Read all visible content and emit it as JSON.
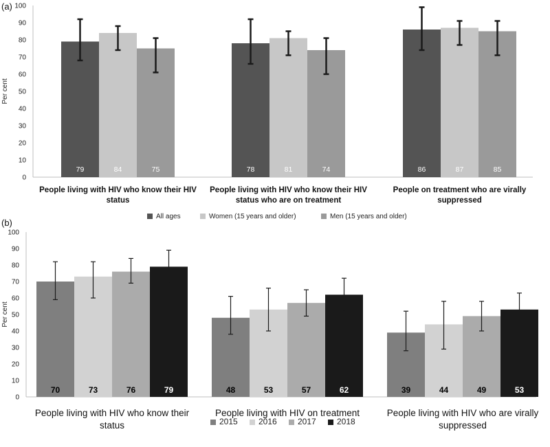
{
  "chart_data": [
    {
      "type": "bar",
      "panel_label": "(a)",
      "ylabel": "Per cent",
      "ylim": [
        0,
        100
      ],
      "yticks": [
        0,
        10,
        20,
        30,
        40,
        50,
        60,
        70,
        80,
        90,
        100
      ],
      "grid": false,
      "legend_position": "bottom",
      "categories": [
        [
          "People living with HIV who know their HIV",
          "status"
        ],
        [
          "People living with HIV who know their HIV",
          "status who are on treatment"
        ],
        [
          "People on treatment who are virally",
          "suppressed"
        ]
      ],
      "series": [
        {
          "name": "All ages",
          "color": "#545454",
          "label_color": "#ffffff",
          "values": [
            79,
            78,
            86
          ],
          "err_low": [
            68,
            66,
            74
          ],
          "err_high": [
            92,
            92,
            99
          ]
        },
        {
          "name": "Women (15 years and older)",
          "color": "#c7c7c7",
          "label_color": "#ffffff",
          "values": [
            84,
            81,
            87
          ],
          "err_low": [
            74,
            71,
            77
          ],
          "err_high": [
            88,
            85,
            91
          ]
        },
        {
          "name": "Men (15 years and older)",
          "color": "#9a9a9a",
          "label_color": "#ffffff",
          "values": [
            75,
            74,
            85
          ],
          "err_low": [
            61,
            60,
            71
          ],
          "err_high": [
            81,
            81,
            91
          ]
        }
      ]
    },
    {
      "type": "bar",
      "panel_label": "(b)",
      "ylabel": "Per cent",
      "ylim": [
        0,
        100
      ],
      "yticks": [
        0,
        10,
        20,
        30,
        40,
        50,
        60,
        70,
        80,
        90,
        100
      ],
      "grid": false,
      "legend_position": "bottom",
      "categories": [
        [
          "People living with HIV who know their",
          "status"
        ],
        [
          "People living with HIV on treatment"
        ],
        [
          "People living with HIV who are virally",
          "suppressed"
        ]
      ],
      "series": [
        {
          "name": "2015",
          "color": "#7f7f7f",
          "label_color": "#000000",
          "values": [
            70,
            48,
            39
          ],
          "err_low": [
            59,
            38,
            28
          ],
          "err_high": [
            82,
            61,
            52
          ]
        },
        {
          "name": "2016",
          "color": "#d2d2d2",
          "label_color": "#000000",
          "values": [
            73,
            53,
            44
          ],
          "err_low": [
            60,
            40,
            29
          ],
          "err_high": [
            82,
            66,
            58
          ]
        },
        {
          "name": "2017",
          "color": "#ababab",
          "label_color": "#000000",
          "values": [
            76,
            57,
            49
          ],
          "err_low": [
            69,
            49,
            40
          ],
          "err_high": [
            84,
            65,
            58
          ]
        },
        {
          "name": "2018",
          "color": "#1a1a1a",
          "label_color": "#ffffff",
          "values": [
            79,
            62,
            53
          ],
          "err_low": [
            69,
            52,
            43
          ],
          "err_high": [
            89,
            72,
            63
          ]
        }
      ]
    }
  ]
}
